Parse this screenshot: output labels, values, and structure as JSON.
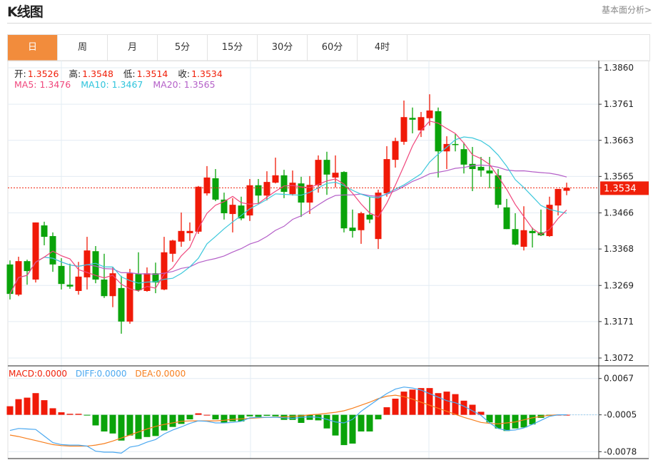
{
  "header": {
    "title": "K线图",
    "fundamental_link": "基本面分析>"
  },
  "tabs": [
    {
      "label": "日",
      "active": true
    },
    {
      "label": "周"
    },
    {
      "label": "月"
    },
    {
      "label": "5分"
    },
    {
      "label": "15分"
    },
    {
      "label": "30分"
    },
    {
      "label": "60分"
    },
    {
      "label": "4时"
    }
  ],
  "ohlc": {
    "open_label": "开:",
    "open": "1.3526",
    "high_label": "高:",
    "high": "1.3548",
    "low_label": "低:",
    "low": "1.3514",
    "close_label": "收:",
    "close": "1.3534"
  },
  "ma": {
    "ma5": "MA5: 1.3476",
    "ma10": "MA10: 1.3467",
    "ma20": "MA20: 1.3565"
  },
  "macd_legend": {
    "macd": "MACD:0.0000",
    "diff": "DIFF:0.0000",
    "dea": "DEA:0.0000"
  },
  "colors": {
    "up": "#f01a08",
    "down": "#0aa30a",
    "ma5": "#f0467c",
    "ma10": "#3cc8dc",
    "ma20": "#b45fc8",
    "diff": "#4aa8f0",
    "dea": "#f77f1e",
    "accent": "#f28c3c"
  },
  "chart_data": {
    "type": "candlestick",
    "price_ticks": [
      "1.3860",
      "1.3761",
      "1.3663",
      "1.3565",
      "1.3466",
      "1.3368",
      "1.3269",
      "1.3171",
      "1.3072"
    ],
    "price_range": [
      1.3072,
      1.386
    ],
    "current_price": "1.3534",
    "candles": [
      [
        1.3326,
        1.3337,
        1.3231,
        1.3246
      ],
      [
        1.3244,
        1.3347,
        1.324,
        1.3335
      ],
      [
        1.3335,
        1.3339,
        1.3271,
        1.3308
      ],
      [
        1.3285,
        1.344,
        1.3277,
        1.344
      ],
      [
        1.3432,
        1.3442,
        1.3378,
        1.3401
      ],
      [
        1.3403,
        1.3413,
        1.3306,
        1.3326
      ],
      [
        1.3322,
        1.3343,
        1.3258,
        1.3273
      ],
      [
        1.3271,
        1.3328,
        1.326,
        1.3266
      ],
      [
        1.3254,
        1.3333,
        1.3244,
        1.3293
      ],
      [
        1.3291,
        1.3401,
        1.3258,
        1.3364
      ],
      [
        1.3362,
        1.3376,
        1.3275,
        1.3285
      ],
      [
        1.3285,
        1.3355,
        1.3235,
        1.324
      ],
      [
        1.324,
        1.3318,
        1.321,
        1.3302
      ],
      [
        1.3262,
        1.3295,
        1.3138,
        1.3171
      ],
      [
        1.3171,
        1.3314,
        1.3165,
        1.3302
      ],
      [
        1.33,
        1.3359,
        1.3252,
        1.3256
      ],
      [
        1.3254,
        1.3318,
        1.3252,
        1.3302
      ],
      [
        1.3302,
        1.3331,
        1.3248,
        1.3277
      ],
      [
        1.3258,
        1.3401,
        1.3256,
        1.3359
      ],
      [
        1.3355,
        1.3393,
        1.3333,
        1.3391
      ],
      [
        1.3388,
        1.3467,
        1.3374,
        1.3417
      ],
      [
        1.3411,
        1.344,
        1.339,
        1.3417
      ],
      [
        1.3415,
        1.3539,
        1.3409,
        1.3537
      ],
      [
        1.3519,
        1.3593,
        1.3513,
        1.3562
      ],
      [
        1.356,
        1.3585,
        1.3498,
        1.3502
      ],
      [
        1.3502,
        1.3521,
        1.3448,
        1.3465
      ],
      [
        1.3463,
        1.3506,
        1.3413,
        1.3488
      ],
      [
        1.3486,
        1.351,
        1.3446,
        1.3451
      ],
      [
        1.3459,
        1.3558,
        1.3444,
        1.3541
      ],
      [
        1.3541,
        1.3558,
        1.3492,
        1.3513
      ],
      [
        1.3513,
        1.3579,
        1.35,
        1.355
      ],
      [
        1.3548,
        1.3616,
        1.3546,
        1.3568
      ],
      [
        1.3568,
        1.3583,
        1.3506,
        1.3523
      ],
      [
        1.3517,
        1.3581,
        1.3513,
        1.3548
      ],
      [
        1.3546,
        1.3564,
        1.3455,
        1.3494
      ],
      [
        1.3494,
        1.3566,
        1.3463,
        1.3542
      ],
      [
        1.3541,
        1.3622,
        1.3521,
        1.361
      ],
      [
        1.361,
        1.3632,
        1.3515,
        1.357
      ],
      [
        1.3562,
        1.3622,
        1.3535,
        1.3575
      ],
      [
        1.3577,
        1.3579,
        1.3413,
        1.3424
      ],
      [
        1.3426,
        1.3475,
        1.3399,
        1.3417
      ],
      [
        1.3419,
        1.3469,
        1.3382,
        1.3465
      ],
      [
        1.3461,
        1.351,
        1.3438,
        1.3448
      ],
      [
        1.3395,
        1.3529,
        1.3368,
        1.3521
      ],
      [
        1.3519,
        1.3647,
        1.351,
        1.3612
      ],
      [
        1.361,
        1.367,
        1.3589,
        1.3661
      ],
      [
        1.3659,
        1.3771,
        1.3651,
        1.3726
      ],
      [
        1.3724,
        1.3752,
        1.3682,
        1.3719
      ],
      [
        1.369,
        1.374,
        1.3672,
        1.3726
      ],
      [
        1.3723,
        1.3788,
        1.3703,
        1.3744
      ],
      [
        1.3742,
        1.3752,
        1.3562,
        1.3633
      ],
      [
        1.3633,
        1.3674,
        1.3585,
        1.3653
      ],
      [
        1.3653,
        1.368,
        1.3633,
        1.3651
      ],
      [
        1.3639,
        1.3657,
        1.3573,
        1.3597
      ],
      [
        1.3599,
        1.3645,
        1.3525,
        1.3585
      ],
      [
        1.3591,
        1.3618,
        1.3564,
        1.3581
      ],
      [
        1.3581,
        1.3618,
        1.3533,
        1.3573
      ],
      [
        1.3568,
        1.3585,
        1.3479,
        1.3488
      ],
      [
        1.3481,
        1.3504,
        1.3422,
        1.3422
      ],
      [
        1.3422,
        1.3465,
        1.3378,
        1.338
      ],
      [
        1.3374,
        1.3484,
        1.3364,
        1.3419
      ],
      [
        1.3417,
        1.3426,
        1.3372,
        1.3411
      ],
      [
        1.3413,
        1.3475,
        1.3403,
        1.3405
      ],
      [
        1.3403,
        1.351,
        1.3401,
        1.3488
      ],
      [
        1.3486,
        1.3531,
        1.3459,
        1.3531
      ],
      [
        1.3526,
        1.3548,
        1.3514,
        1.3534
      ]
    ],
    "macd_ticks": [
      "0.0067",
      "-0.0005",
      "-0.0078"
    ],
    "macd_baseline": -0.0005,
    "macd_hist": [
      0.0012,
      0.0026,
      0.0029,
      0.0038,
      0.0024,
      0.0008,
      0.0,
      -0.0003,
      -0.0003,
      -0.0006,
      -0.0026,
      -0.0038,
      -0.0042,
      -0.0056,
      -0.0046,
      -0.0053,
      -0.0049,
      -0.0047,
      -0.0036,
      -0.0029,
      -0.0023,
      -0.0014,
      -0.0002,
      -0.0005,
      -0.0014,
      -0.0021,
      -0.0018,
      -0.0018,
      -0.0008,
      -0.0009,
      -0.0007,
      -0.0008,
      -0.0015,
      -0.0015,
      -0.0021,
      -0.0015,
      -0.0016,
      -0.0032,
      -0.0046,
      -0.0065,
      -0.0062,
      -0.0038,
      -0.0038,
      -0.0014,
      0.001,
      0.0027,
      0.0041,
      0.0045,
      0.0048,
      0.0048,
      0.0038,
      0.0041,
      0.0036,
      0.0023,
      0.0015,
      0.0001,
      -0.002,
      -0.0032,
      -0.0037,
      -0.0032,
      -0.003,
      -0.0024,
      -0.0011,
      -0.0007,
      -0.0005,
      -0.0005
    ],
    "diff": [
      -0.0036,
      -0.0032,
      -0.0033,
      -0.0034,
      -0.0047,
      -0.006,
      -0.0064,
      -0.0065,
      -0.0065,
      -0.0067,
      -0.0077,
      -0.0079,
      -0.0079,
      -0.0081,
      -0.0069,
      -0.0066,
      -0.0059,
      -0.0054,
      -0.0043,
      -0.0035,
      -0.0029,
      -0.0022,
      -0.0017,
      -0.0018,
      -0.0021,
      -0.0021,
      -0.002,
      -0.0018,
      -0.0011,
      -0.001,
      -0.001,
      -0.001,
      -0.0011,
      -0.0012,
      -0.001,
      -0.0009,
      -0.001,
      -0.0014,
      -0.0019,
      -0.0021,
      -0.0014,
      0.0002,
      0.0014,
      0.0026,
      0.0037,
      0.0046,
      0.005,
      0.0048,
      0.0044,
      0.0037,
      0.003,
      0.0023,
      0.0019,
      0.0012,
      0.0003,
      -0.0006,
      -0.0021,
      -0.0032,
      -0.0036,
      -0.0035,
      -0.0031,
      -0.0024,
      -0.0016,
      -0.0008,
      -0.0005,
      -0.0005
    ],
    "dea": [
      -0.0045,
      -0.0048,
      -0.0052,
      -0.0056,
      -0.006,
      -0.0064,
      -0.0066,
      -0.0067,
      -0.0067,
      -0.0067,
      -0.0065,
      -0.0062,
      -0.0057,
      -0.0051,
      -0.0045,
      -0.0039,
      -0.0033,
      -0.0028,
      -0.0024,
      -0.0021,
      -0.0018,
      -0.0017,
      -0.0017,
      -0.0017,
      -0.0017,
      -0.0016,
      -0.0014,
      -0.0013,
      -0.0012,
      -0.0011,
      -0.001,
      -0.001,
      -0.0009,
      -0.0008,
      -0.0007,
      -0.0005,
      -0.0004,
      -0.0002,
      0.0,
      0.0003,
      0.0008,
      0.0014,
      0.002,
      0.0027,
      0.0032,
      0.0034,
      0.0031,
      0.0026,
      0.002,
      0.0014,
      0.0008,
      0.0002,
      -0.0004,
      -0.001,
      -0.0015,
      -0.002,
      -0.0022,
      -0.0023,
      -0.0021,
      -0.0019,
      -0.0015,
      -0.0011,
      -0.0008,
      -0.0006,
      -0.0005,
      -0.0005
    ]
  }
}
